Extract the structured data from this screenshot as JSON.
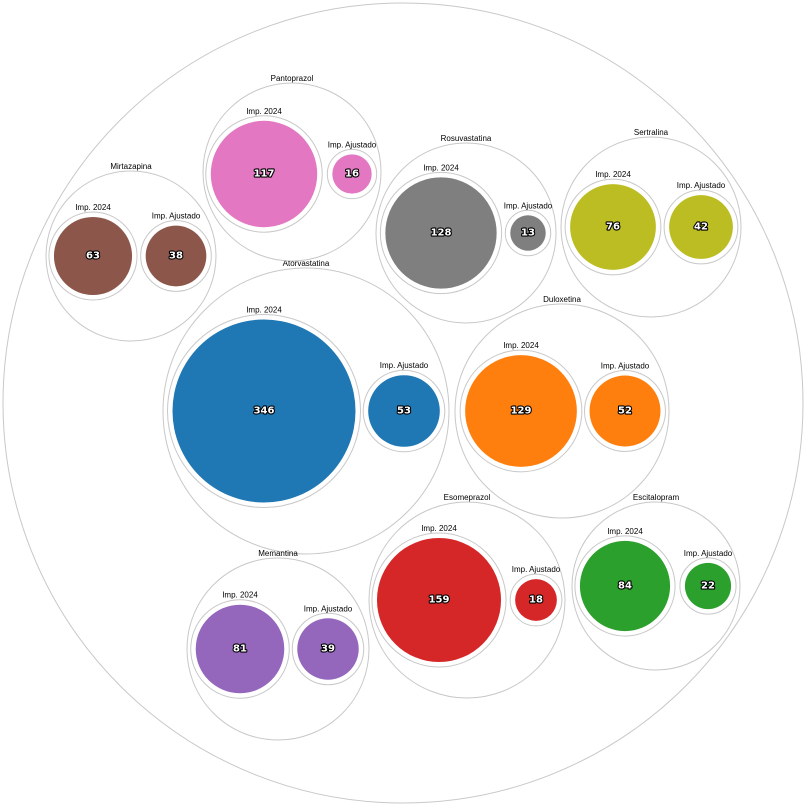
{
  "chart_data": {
    "type": "packed-bubble",
    "title": "",
    "groups": [
      {
        "name": "Atorvastatina",
        "color": "#1f77b4",
        "items": [
          {
            "label": "Imp. 2024",
            "value": 346
          },
          {
            "label": "Imp. Ajustado",
            "value": 53
          }
        ]
      },
      {
        "name": "Duloxetina",
        "color": "#ff7f0e",
        "items": [
          {
            "label": "Imp. 2024",
            "value": 129
          },
          {
            "label": "Imp. Ajustado",
            "value": 52
          }
        ]
      },
      {
        "name": "Escitalopram",
        "color": "#2ca02c",
        "items": [
          {
            "label": "Imp. 2024",
            "value": 84
          },
          {
            "label": "Imp. Ajustado",
            "value": 22
          }
        ]
      },
      {
        "name": "Esomeprazol",
        "color": "#d62728",
        "items": [
          {
            "label": "Imp. 2024",
            "value": 159
          },
          {
            "label": "Imp. Ajustado",
            "value": 18
          }
        ]
      },
      {
        "name": "Memantina",
        "color": "#9467bd",
        "items": [
          {
            "label": "Imp. 2024",
            "value": 81
          },
          {
            "label": "Imp. Ajustado",
            "value": 39
          }
        ]
      },
      {
        "name": "Mirtazapina",
        "color": "#8c564b",
        "items": [
          {
            "label": "Imp. 2024",
            "value": 63
          },
          {
            "label": "Imp. Ajustado",
            "value": 38
          }
        ]
      },
      {
        "name": "Pantoprazol",
        "color": "#e377c2",
        "items": [
          {
            "label": "Imp. 2024",
            "value": 117
          },
          {
            "label": "Imp. Ajustado",
            "value": 16
          }
        ]
      },
      {
        "name": "Rosuvastatina",
        "color": "#7f7f7f",
        "items": [
          {
            "label": "Imp. 2024",
            "value": 128
          },
          {
            "label": "Imp. Ajustado",
            "value": 13
          }
        ]
      },
      {
        "name": "Sertralina",
        "color": "#bcbd22",
        "items": [
          {
            "label": "Imp. 2024",
            "value": 76
          },
          {
            "label": "Imp. Ajustado",
            "value": 42
          }
        ]
      }
    ]
  }
}
